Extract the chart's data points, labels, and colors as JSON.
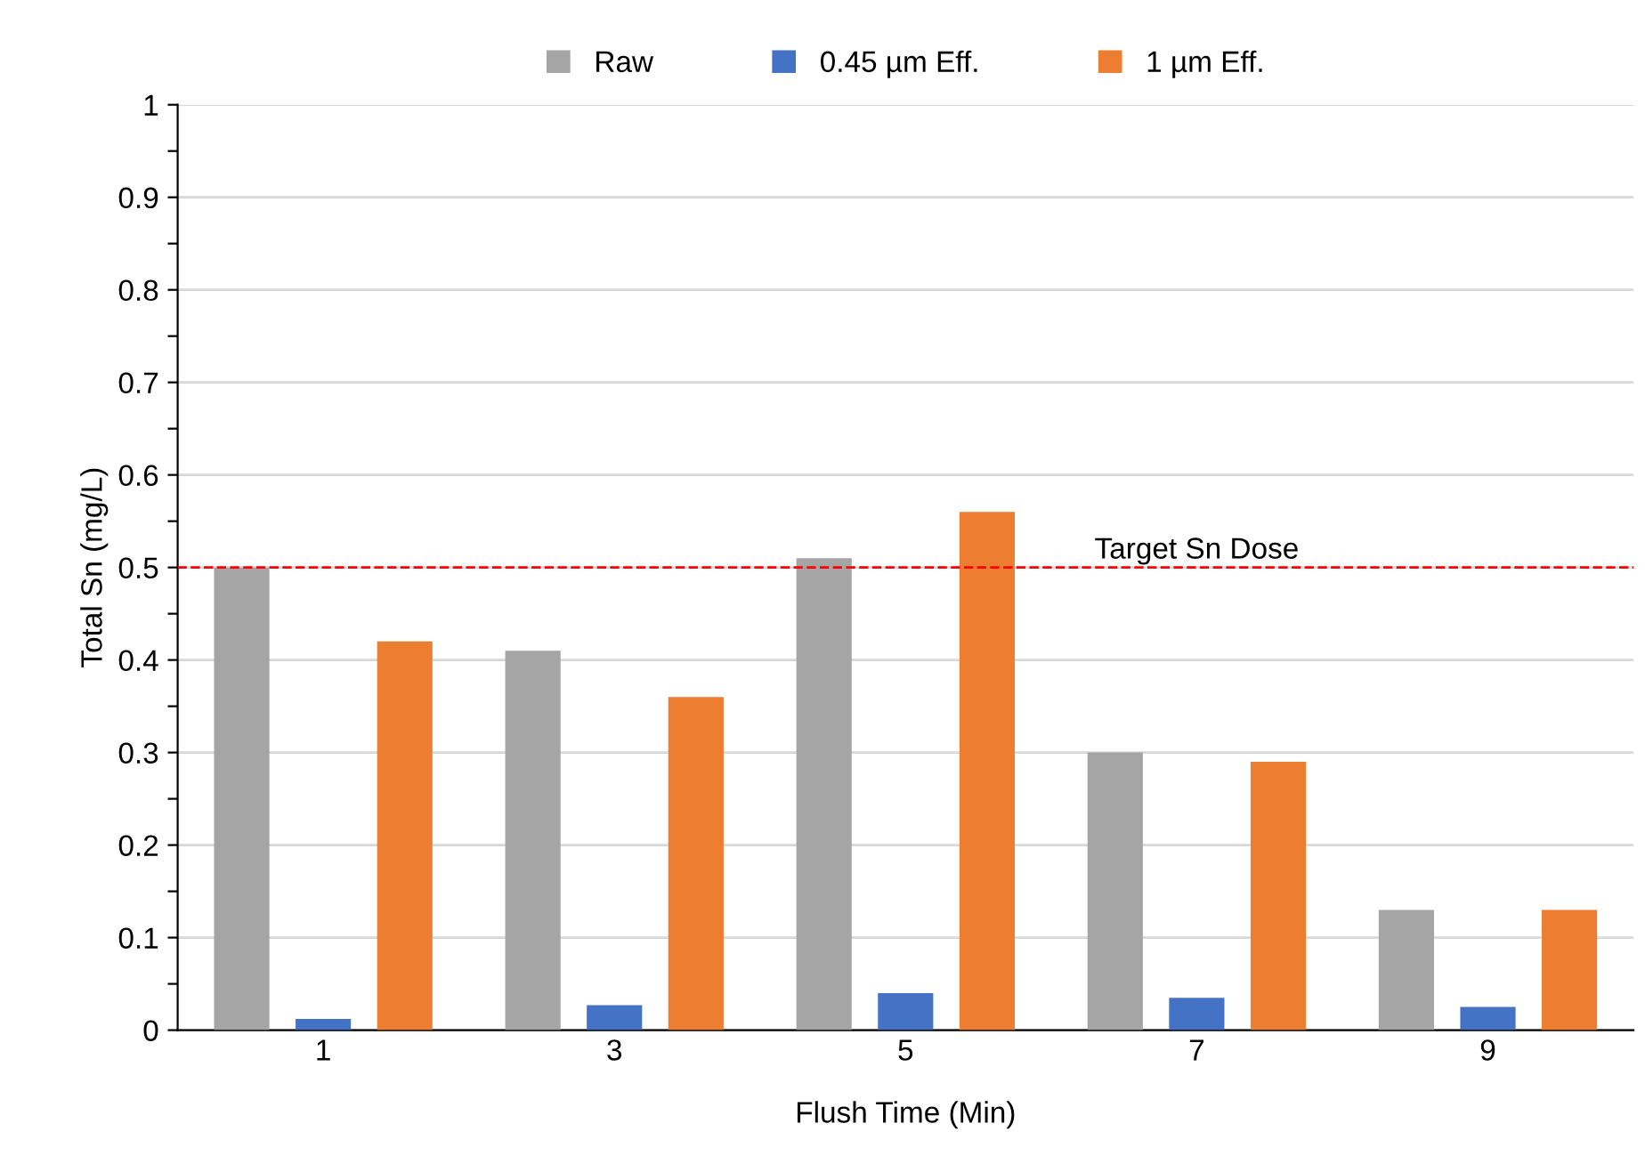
{
  "chart_data": {
    "type": "bar",
    "xlabel": "Flush Time (Min)",
    "ylabel": "Total Sn (mg/L)",
    "categories": [
      "1",
      "3",
      "5",
      "7",
      "9"
    ],
    "series": [
      {
        "name": "Raw",
        "color": "#a5a5a5",
        "values": [
          0.5,
          0.41,
          0.51,
          0.3,
          0.13
        ]
      },
      {
        "name": "0.45 µm Eff.",
        "color": "#4472c4",
        "values": [
          0.012,
          0.027,
          0.04,
          0.035,
          0.025
        ]
      },
      {
        "name": "1 µm Eff.",
        "color": "#ed7d31",
        "values": [
          0.42,
          0.36,
          0.56,
          0.29,
          0.13
        ]
      }
    ],
    "ylim": [
      0,
      1
    ],
    "yticks": [
      0,
      {
        "value": 0.05,
        "label": null
      },
      0.1,
      {
        "value": 0.15,
        "label": null
      },
      0.2,
      {
        "value": 0.25,
        "label": null
      },
      0.3,
      {
        "value": 0.35,
        "label": null
      },
      0.4,
      {
        "value": 0.45,
        "label": null
      },
      0.5,
      {
        "value": 0.55,
        "label": null
      },
      0.6,
      {
        "value": 0.65,
        "label": null
      },
      0.7,
      {
        "value": 0.75,
        "label": null
      },
      0.8,
      {
        "value": 0.85,
        "label": null
      },
      0.9,
      {
        "value": 0.95,
        "label": null
      },
      1
    ],
    "ref_lines": [
      {
        "axis": "y",
        "value": 0.5,
        "label": "Target Sn Dose",
        "color": "#ff0000",
        "line_style": "dashed"
      }
    ],
    "grid": "y",
    "legend": "top"
  }
}
